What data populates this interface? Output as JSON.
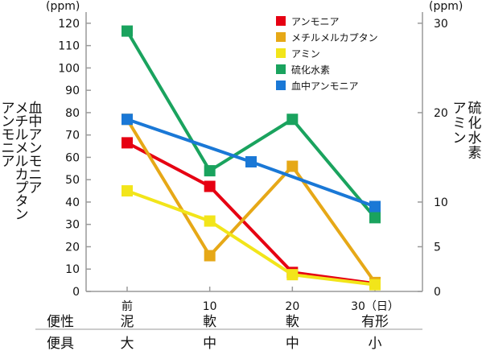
{
  "chart_data": {
    "type": "line",
    "x": [
      0,
      10,
      20,
      30
    ],
    "x_tick_labels": [
      "前",
      "10",
      "20",
      "30（日）"
    ],
    "y_left": {
      "unit": "(ppm)",
      "range": [
        0,
        125
      ],
      "ticks": [
        0,
        10,
        20,
        30,
        40,
        50,
        60,
        70,
        80,
        90,
        100,
        110,
        120
      ]
    },
    "y_right": {
      "unit": "(ppm)",
      "range": [
        0,
        31.25
      ],
      "ticks": [
        0,
        5,
        10,
        20,
        30
      ]
    },
    "left_axis_label_columns": [
      "血中アンモニア",
      "メチルメルカプタン",
      "アンモニア"
    ],
    "right_axis_label_columns": [
      "硫化水素",
      "アミン"
    ],
    "series": [
      {
        "name": "アンモニア",
        "color": "#e60012",
        "axis": "left",
        "points": [
          [
            0,
            66.5
          ],
          [
            10,
            47
          ],
          [
            20,
            8.5
          ],
          [
            30,
            3.5
          ]
        ]
      },
      {
        "name": "メチルメルカプタン",
        "color": "#e6a817",
        "axis": "left",
        "points": [
          [
            0,
            77
          ],
          [
            10,
            16
          ],
          [
            20,
            56
          ],
          [
            30,
            4
          ]
        ]
      },
      {
        "name": "アミン",
        "color": "#f2e51a",
        "axis": "left",
        "points": [
          [
            0,
            45
          ],
          [
            10,
            31.5
          ],
          [
            20,
            7.5
          ],
          [
            30,
            3
          ]
        ]
      },
      {
        "name": "硫化水素",
        "color": "#1aa35e",
        "axis": "left",
        "points": [
          [
            0,
            116.5
          ],
          [
            10,
            54
          ],
          [
            20,
            77
          ],
          [
            30,
            33
          ]
        ]
      },
      {
        "name": "血中アンモニア",
        "color": "#1a78d6",
        "axis": "left",
        "points": [
          [
            0,
            77
          ],
          [
            15,
            58
          ],
          [
            30,
            38
          ]
        ]
      }
    ],
    "grid": false,
    "legend_position": "top-right"
  },
  "table_rows": [
    {
      "label": "便性",
      "cells": [
        "泥",
        "軟",
        "軟",
        "有形"
      ]
    },
    {
      "label": "便具",
      "cells": [
        "大",
        "中",
        "中",
        "小"
      ]
    }
  ]
}
